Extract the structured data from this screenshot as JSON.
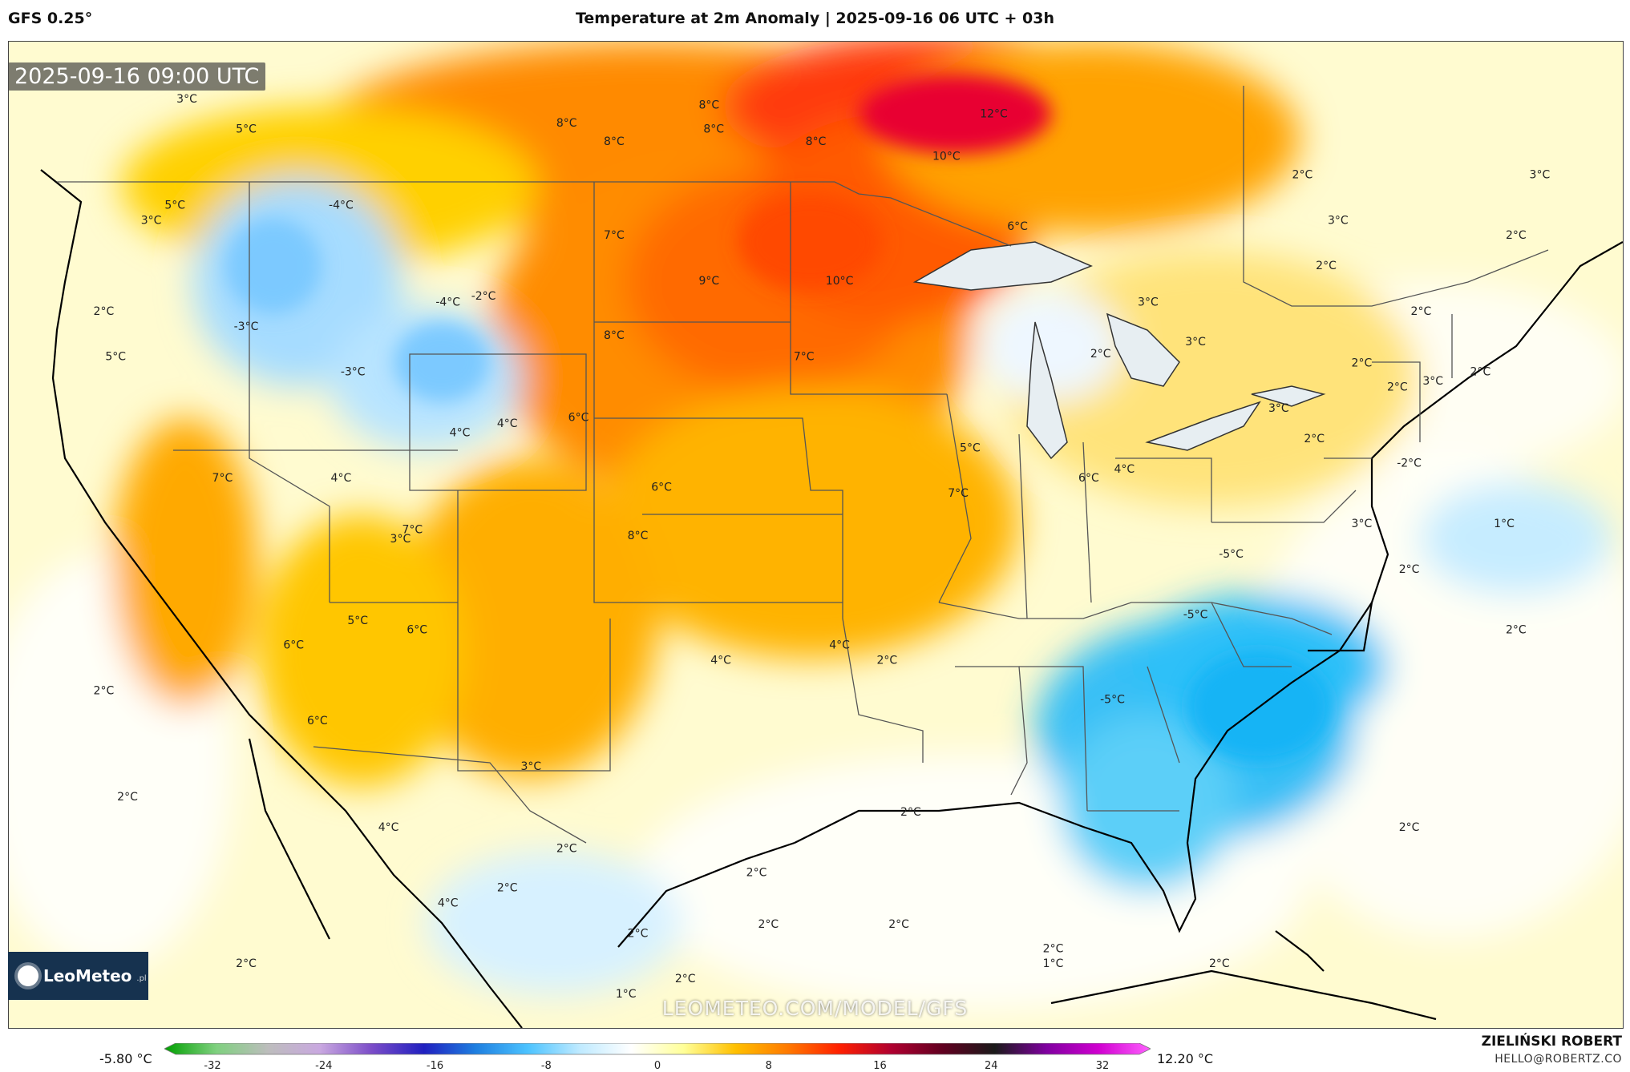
{
  "header": {
    "model": "GFS 0.25°",
    "title": "Temperature at 2m Anomaly | 2025-09-16 06 UTC + 03h"
  },
  "map": {
    "timestamp": "2025-09-16 09:00 UTC",
    "watermark": "LEOMETEO.COM/MODEL/GFS",
    "logo_text": "LeoMeteo",
    "logo_sub": ".pl",
    "labels": [
      {
        "text": "12°C",
        "lon": -88.5,
        "lat": 49.5
      },
      {
        "text": "10°C",
        "lon": -90.5,
        "lat": 48.1
      },
      {
        "text": "10°C",
        "lon": -95.0,
        "lat": 44.0
      },
      {
        "text": "9°C",
        "lon": -100.5,
        "lat": 44.0
      },
      {
        "text": "8°C",
        "lon": -106.5,
        "lat": 49.2
      },
      {
        "text": "8°C",
        "lon": -100.5,
        "lat": 49.8
      },
      {
        "text": "8°C",
        "lon": -104.5,
        "lat": 48.6
      },
      {
        "text": "8°C",
        "lon": -96.0,
        "lat": 48.6
      },
      {
        "text": "8°C",
        "lon": -100.3,
        "lat": 49.0
      },
      {
        "text": "8°C",
        "lon": -104.5,
        "lat": 42.2
      },
      {
        "text": "8°C",
        "lon": -103.5,
        "lat": 35.6
      },
      {
        "text": "7°C",
        "lon": -104.5,
        "lat": 45.5
      },
      {
        "text": "7°C",
        "lon": -96.5,
        "lat": 41.5
      },
      {
        "text": "7°C",
        "lon": -121.0,
        "lat": 37.5
      },
      {
        "text": "7°C",
        "lon": -113.0,
        "lat": 35.8
      },
      {
        "text": "7°C",
        "lon": -90.0,
        "lat": 37.0
      },
      {
        "text": "6°C",
        "lon": -87.5,
        "lat": 45.8
      },
      {
        "text": "6°C",
        "lon": -106.0,
        "lat": 39.5
      },
      {
        "text": "6°C",
        "lon": -102.5,
        "lat": 37.2
      },
      {
        "text": "6°C",
        "lon": -112.8,
        "lat": 32.5
      },
      {
        "text": "6°C",
        "lon": -84.5,
        "lat": 37.5
      },
      {
        "text": "6°C",
        "lon": -118.0,
        "lat": 32.0
      },
      {
        "text": "6°C",
        "lon": -117.0,
        "lat": 29.5
      },
      {
        "text": "5°C",
        "lon": -120.0,
        "lat": 49.0
      },
      {
        "text": "5°C",
        "lon": -123.0,
        "lat": 46.5
      },
      {
        "text": "5°C",
        "lon": -125.5,
        "lat": 41.5
      },
      {
        "text": "5°C",
        "lon": -89.5,
        "lat": 38.5
      },
      {
        "text": "5°C",
        "lon": -115.3,
        "lat": 32.8
      },
      {
        "text": "-5°C",
        "lon": -78.5,
        "lat": 35.0
      },
      {
        "text": "-5°C",
        "lon": -80.0,
        "lat": 33.0
      },
      {
        "text": "-5°C",
        "lon": -83.5,
        "lat": 30.2
      },
      {
        "text": "4°C",
        "lon": -116.0,
        "lat": 37.5
      },
      {
        "text": "4°C",
        "lon": -111.0,
        "lat": 39.0
      },
      {
        "text": "4°C",
        "lon": -109.0,
        "lat": 39.3
      },
      {
        "text": "4°C",
        "lon": -100.0,
        "lat": 31.5
      },
      {
        "text": "4°C",
        "lon": -95.0,
        "lat": 32.0
      },
      {
        "text": "4°C",
        "lon": -83.0,
        "lat": 37.8
      },
      {
        "text": "4°C",
        "lon": -114.0,
        "lat": 26.0
      },
      {
        "text": "4°C",
        "lon": -111.5,
        "lat": 23.5
      },
      {
        "text": "-4°C",
        "lon": -116.0,
        "lat": 46.5
      },
      {
        "text": "-4°C",
        "lon": -111.5,
        "lat": 43.3
      },
      {
        "text": "3°C",
        "lon": -122.5,
        "lat": 50.0
      },
      {
        "text": "3°C",
        "lon": -124.0,
        "lat": 46.0
      },
      {
        "text": "3°C",
        "lon": -82.0,
        "lat": 43.3
      },
      {
        "text": "3°C",
        "lon": -80.0,
        "lat": 42.0
      },
      {
        "text": "3°C",
        "lon": -76.5,
        "lat": 39.8
      },
      {
        "text": "3°C",
        "lon": -74.0,
        "lat": 46.0
      },
      {
        "text": "3°C",
        "lon": -70.0,
        "lat": 40.7
      },
      {
        "text": "3°C",
        "lon": -73.0,
        "lat": 36.0
      },
      {
        "text": "3°C",
        "lon": -113.5,
        "lat": 35.5
      },
      {
        "text": "3°C",
        "lon": -108.0,
        "lat": 28.0
      },
      {
        "text": "3°C",
        "lon": -65.5,
        "lat": 47.5
      },
      {
        "text": "-3°C",
        "lon": -120.0,
        "lat": 42.5
      },
      {
        "text": "-3°C",
        "lon": -115.5,
        "lat": 41.0
      },
      {
        "text": "2°C",
        "lon": -126.0,
        "lat": 43.0
      },
      {
        "text": "2°C",
        "lon": -75.5,
        "lat": 47.5
      },
      {
        "text": "2°C",
        "lon": -66.5,
        "lat": 45.5
      },
      {
        "text": "2°C",
        "lon": -74.5,
        "lat": 44.5
      },
      {
        "text": "2°C",
        "lon": -70.5,
        "lat": 43.0
      },
      {
        "text": "2°C",
        "lon": -73.0,
        "lat": 41.3
      },
      {
        "text": "2°C",
        "lon": -71.5,
        "lat": 40.5
      },
      {
        "text": "2°C",
        "lon": -68.0,
        "lat": 41.0
      },
      {
        "text": "2°C",
        "lon": -84.0,
        "lat": 41.6
      },
      {
        "text": "2°C",
        "lon": -75.0,
        "lat": 38.8
      },
      {
        "text": "2°C",
        "lon": -71.0,
        "lat": 34.5
      },
      {
        "text": "2°C",
        "lon": -66.5,
        "lat": 32.5
      },
      {
        "text": "2°C",
        "lon": -93.0,
        "lat": 31.5
      },
      {
        "text": "2°C",
        "lon": -92.0,
        "lat": 26.5
      },
      {
        "text": "2°C",
        "lon": -106.5,
        "lat": 25.3
      },
      {
        "text": "2°C",
        "lon": -109.0,
        "lat": 24.0
      },
      {
        "text": "2°C",
        "lon": -103.5,
        "lat": 22.5
      },
      {
        "text": "2°C",
        "lon": -98.5,
        "lat": 24.5
      },
      {
        "text": "2°C",
        "lon": -98.0,
        "lat": 22.8
      },
      {
        "text": "2°C",
        "lon": -92.5,
        "lat": 22.8
      },
      {
        "text": "2°C",
        "lon": -86.0,
        "lat": 22.0
      },
      {
        "text": "2°C",
        "lon": -79.0,
        "lat": 21.5
      },
      {
        "text": "2°C",
        "lon": -71.0,
        "lat": 26.0
      },
      {
        "text": "2°C",
        "lon": -126.0,
        "lat": 30.5
      },
      {
        "text": "2°C",
        "lon": -125.0,
        "lat": 27.0
      },
      {
        "text": "2°C",
        "lon": -120.0,
        "lat": 21.5
      },
      {
        "text": "2°C",
        "lon": -101.5,
        "lat": 21.0
      },
      {
        "text": "-2°C",
        "lon": -110.0,
        "lat": 43.5
      },
      {
        "text": "-2°C",
        "lon": -71.0,
        "lat": 38.0
      },
      {
        "text": "1°C",
        "lon": -67.0,
        "lat": 36.0
      },
      {
        "text": "1°C",
        "lon": -86.0,
        "lat": 21.5
      },
      {
        "text": "1°C",
        "lon": -104.0,
        "lat": 20.5
      }
    ]
  },
  "colorbar": {
    "min_label": "-5.80 °C",
    "max_label": "12.20 °C",
    "ticks": [
      "-32",
      "-24",
      "-16",
      "-8",
      "0",
      "8",
      "16",
      "24",
      "32"
    ],
    "stops": [
      "#00a000",
      "#7fd07f",
      "#bdbdbd",
      "#c9a8e0",
      "#7b4cc8",
      "#2020c0",
      "#1e7fe0",
      "#4cc3ff",
      "#bfeaff",
      "#ffffff",
      "#ffff99",
      "#ffc000",
      "#ff7a00",
      "#ff2000",
      "#b00030",
      "#600020",
      "#1a1a1a",
      "#8000a0",
      "#d000d0",
      "#ff60ff"
    ]
  },
  "credits": {
    "author": "ZIELIŃSKI ROBERT",
    "email": "HELLO@ROBERTZ.CO"
  }
}
